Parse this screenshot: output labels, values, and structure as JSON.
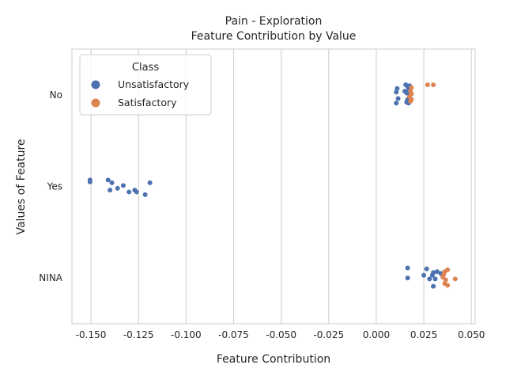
{
  "chart_data": {
    "type": "scatter",
    "title_line1": "Pain - Exploration",
    "title_line2": "Feature Contribution by Value",
    "xlabel": "Feature Contribution",
    "ylabel": "Values of Feature",
    "xlim": [
      -0.16,
      0.052
    ],
    "x_ticks": [
      "-0.150",
      "-0.125",
      "-0.100",
      "-0.075",
      "-0.050",
      "-0.025",
      "0.000",
      "0.025",
      "0.050"
    ],
    "x_tick_values": [
      -0.15,
      -0.125,
      -0.1,
      -0.075,
      -0.05,
      -0.025,
      0.0,
      0.025,
      0.05
    ],
    "categories": [
      "No",
      "Yes",
      "NINA"
    ],
    "grid": "vertical",
    "legend": {
      "title": "Class",
      "placement": "top-left",
      "entries": [
        "Unsatisfactory",
        "Satisfactory"
      ]
    },
    "colors": {
      "Unsatisfactory": "#4c72b0",
      "Satisfactory": "#dd8452"
    },
    "series": [
      {
        "name": "Unsatisfactory",
        "points": [
          {
            "category": "No",
            "x": 0.0155,
            "jitter": -0.11
          },
          {
            "category": "No",
            "x": 0.0165,
            "jitter": -0.09
          },
          {
            "category": "No",
            "x": 0.0175,
            "jitter": -0.1
          },
          {
            "category": "No",
            "x": 0.011,
            "jitter": -0.07
          },
          {
            "category": "No",
            "x": 0.015,
            "jitter": -0.04
          },
          {
            "category": "No",
            "x": 0.017,
            "jitter": -0.05
          },
          {
            "category": "No",
            "x": 0.0105,
            "jitter": -0.03
          },
          {
            "category": "No",
            "x": 0.016,
            "jitter": -0.02
          },
          {
            "category": "No",
            "x": 0.0175,
            "jitter": -0.01
          },
          {
            "category": "No",
            "x": 0.0115,
            "jitter": 0.04
          },
          {
            "category": "No",
            "x": 0.0165,
            "jitter": 0.05
          },
          {
            "category": "No",
            "x": 0.017,
            "jitter": 0.06
          },
          {
            "category": "No",
            "x": 0.0105,
            "jitter": 0.09
          },
          {
            "category": "No",
            "x": 0.016,
            "jitter": 0.08
          },
          {
            "category": "No",
            "x": 0.017,
            "jitter": 0.09
          },
          {
            "category": "Yes",
            "x": -0.1505,
            "jitter": -0.07
          },
          {
            "category": "Yes",
            "x": -0.1505,
            "jitter": -0.05
          },
          {
            "category": "Yes",
            "x": -0.141,
            "jitter": -0.07
          },
          {
            "category": "Yes",
            "x": -0.139,
            "jitter": -0.04
          },
          {
            "category": "Yes",
            "x": -0.119,
            "jitter": -0.04
          },
          {
            "category": "Yes",
            "x": -0.133,
            "jitter": -0.01
          },
          {
            "category": "Yes",
            "x": -0.136,
            "jitter": 0.02
          },
          {
            "category": "Yes",
            "x": -0.14,
            "jitter": 0.04
          },
          {
            "category": "Yes",
            "x": -0.127,
            "jitter": 0.04
          },
          {
            "category": "Yes",
            "x": -0.13,
            "jitter": 0.06
          },
          {
            "category": "Yes",
            "x": -0.126,
            "jitter": 0.06
          },
          {
            "category": "Yes",
            "x": -0.1215,
            "jitter": 0.09
          },
          {
            "category": "NINA",
            "x": 0.0165,
            "jitter": -0.11
          },
          {
            "category": "NINA",
            "x": 0.0265,
            "jitter": -0.1
          },
          {
            "category": "NINA",
            "x": 0.032,
            "jitter": -0.07
          },
          {
            "category": "NINA",
            "x": 0.03,
            "jitter": -0.06
          },
          {
            "category": "NINA",
            "x": 0.034,
            "jitter": -0.05
          },
          {
            "category": "NINA",
            "x": 0.025,
            "jitter": -0.03
          },
          {
            "category": "NINA",
            "x": 0.0295,
            "jitter": -0.03
          },
          {
            "category": "NINA",
            "x": 0.0165,
            "jitter": 0.0
          },
          {
            "category": "NINA",
            "x": 0.028,
            "jitter": 0.01
          },
          {
            "category": "NINA",
            "x": 0.031,
            "jitter": 0.01
          },
          {
            "category": "NINA",
            "x": 0.03,
            "jitter": 0.09
          }
        ]
      },
      {
        "name": "Satisfactory",
        "points": [
          {
            "category": "No",
            "x": 0.027,
            "jitter": -0.11
          },
          {
            "category": "No",
            "x": 0.03,
            "jitter": -0.11
          },
          {
            "category": "No",
            "x": 0.0185,
            "jitter": -0.08
          },
          {
            "category": "No",
            "x": 0.018,
            "jitter": -0.04
          },
          {
            "category": "No",
            "x": 0.0185,
            "jitter": -0.01
          },
          {
            "category": "No",
            "x": 0.0175,
            "jitter": 0.02
          },
          {
            "category": "No",
            "x": 0.0185,
            "jitter": 0.05
          },
          {
            "category": "No",
            "x": 0.018,
            "jitter": 0.07
          },
          {
            "category": "NINA",
            "x": 0.0375,
            "jitter": -0.09
          },
          {
            "category": "NINA",
            "x": 0.036,
            "jitter": -0.07
          },
          {
            "category": "NINA",
            "x": 0.0355,
            "jitter": -0.04
          },
          {
            "category": "NINA",
            "x": 0.035,
            "jitter": -0.01
          },
          {
            "category": "NINA",
            "x": 0.0415,
            "jitter": 0.01
          },
          {
            "category": "NINA",
            "x": 0.0365,
            "jitter": 0.02
          },
          {
            "category": "NINA",
            "x": 0.036,
            "jitter": 0.06
          },
          {
            "category": "NINA",
            "x": 0.0375,
            "jitter": 0.08
          }
        ]
      }
    ]
  }
}
